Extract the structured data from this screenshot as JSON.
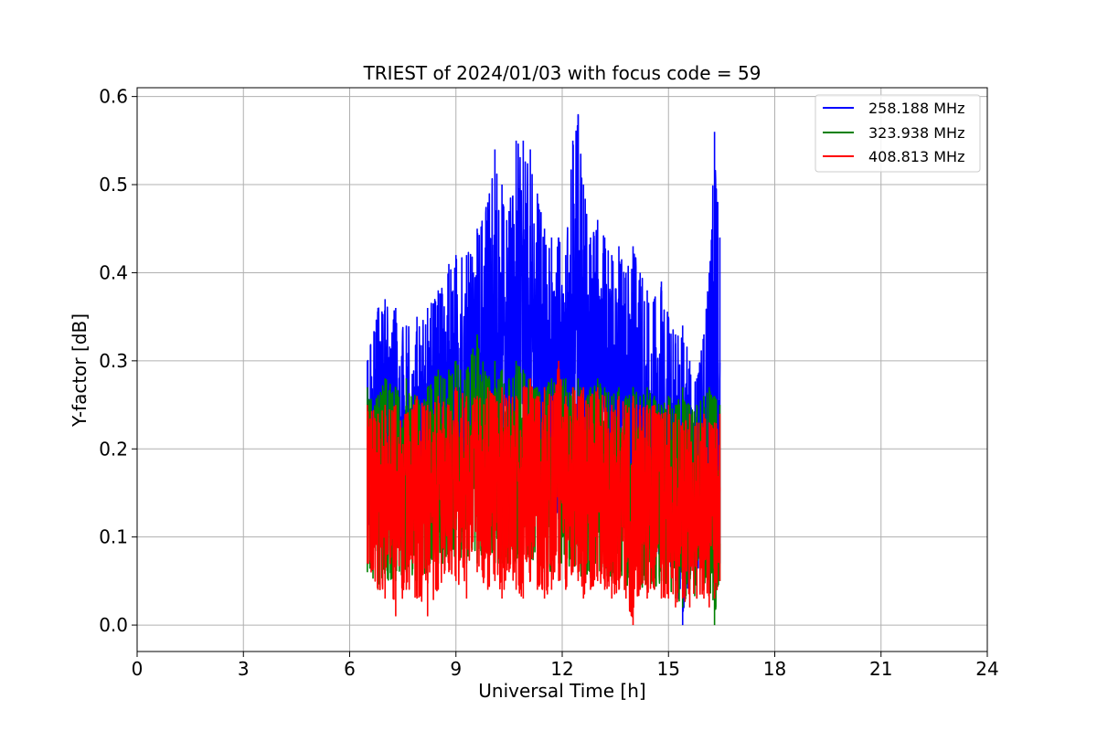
{
  "chart_data": {
    "type": "line",
    "title": "TRIEST of 2024/01/03 with focus code = 59",
    "xlabel": "Universal Time [h]",
    "ylabel": "Y-factor [dB]",
    "xlim": [
      0,
      24
    ],
    "ylim": [
      -0.03,
      0.61
    ],
    "xticks": [
      0,
      3,
      6,
      9,
      12,
      15,
      18,
      21,
      24
    ],
    "yticks": [
      0.0,
      0.1,
      0.2,
      0.3,
      0.4,
      0.5,
      0.6
    ],
    "ytick_labels": [
      "0.0",
      "0.1",
      "0.2",
      "0.3",
      "0.4",
      "0.5",
      "0.6"
    ],
    "grid": true,
    "legend_position": "top-right",
    "series": [
      {
        "name": "258.188 MHz",
        "color": "#0000ff",
        "x": [
          6.5,
          6.8,
          7.0,
          7.3,
          7.6,
          7.9,
          8.2,
          8.5,
          8.8,
          9.0,
          9.3,
          9.6,
          9.9,
          10.1,
          10.3,
          10.5,
          10.7,
          10.9,
          11.1,
          11.3,
          11.5,
          11.7,
          11.9,
          12.1,
          12.3,
          12.45,
          12.6,
          12.8,
          13.0,
          13.2,
          13.4,
          13.6,
          13.8,
          14.0,
          14.2,
          14.4,
          14.6,
          14.8,
          15.0,
          15.2,
          15.4,
          15.6,
          15.8,
          16.0,
          16.15,
          16.3,
          16.45
        ],
        "max": [
          0.3,
          0.36,
          0.37,
          0.36,
          0.34,
          0.35,
          0.36,
          0.38,
          0.41,
          0.42,
          0.42,
          0.45,
          0.48,
          0.54,
          0.5,
          0.47,
          0.55,
          0.55,
          0.54,
          0.49,
          0.45,
          0.44,
          0.44,
          0.42,
          0.55,
          0.58,
          0.5,
          0.44,
          0.46,
          0.44,
          0.42,
          0.43,
          0.4,
          0.43,
          0.4,
          0.38,
          0.37,
          0.39,
          0.35,
          0.33,
          0.34,
          0.3,
          0.28,
          0.33,
          0.4,
          0.56,
          0.44
        ],
        "min": [
          0.1,
          0.12,
          0.13,
          0.11,
          0.12,
          0.1,
          0.12,
          0.13,
          0.12,
          0.13,
          0.14,
          0.15,
          0.16,
          0.16,
          0.15,
          0.15,
          0.16,
          0.15,
          0.14,
          0.13,
          0.13,
          0.12,
          0.12,
          0.12,
          0.13,
          0.13,
          0.12,
          0.12,
          0.11,
          0.12,
          0.11,
          0.11,
          0.1,
          0.1,
          0.09,
          0.08,
          0.07,
          0.08,
          0.07,
          0.05,
          0.0,
          0.05,
          0.06,
          0.06,
          0.06,
          0.07,
          0.07
        ]
      },
      {
        "name": "323.938 MHz",
        "color": "#008000",
        "x": [
          6.5,
          6.8,
          7.0,
          7.3,
          7.6,
          7.9,
          8.2,
          8.5,
          8.8,
          9.0,
          9.3,
          9.6,
          9.9,
          10.1,
          10.3,
          10.5,
          10.7,
          10.9,
          11.1,
          11.3,
          11.5,
          11.7,
          11.9,
          12.1,
          12.3,
          12.45,
          12.6,
          12.8,
          13.0,
          13.2,
          13.4,
          13.6,
          13.8,
          14.0,
          14.2,
          14.4,
          14.6,
          14.8,
          15.0,
          15.2,
          15.4,
          15.6,
          15.8,
          16.0,
          16.15,
          16.3,
          16.45
        ],
        "max": [
          0.27,
          0.26,
          0.28,
          0.27,
          0.28,
          0.26,
          0.27,
          0.29,
          0.29,
          0.3,
          0.29,
          0.33,
          0.28,
          0.3,
          0.29,
          0.28,
          0.3,
          0.29,
          0.28,
          0.27,
          0.27,
          0.28,
          0.28,
          0.28,
          0.27,
          0.28,
          0.26,
          0.27,
          0.28,
          0.27,
          0.26,
          0.27,
          0.26,
          0.27,
          0.26,
          0.27,
          0.26,
          0.25,
          0.26,
          0.25,
          0.27,
          0.25,
          0.25,
          0.26,
          0.27,
          0.26,
          0.25
        ],
        "min": [
          0.06,
          0.04,
          0.05,
          0.05,
          0.06,
          0.05,
          0.06,
          0.07,
          0.07,
          0.08,
          0.07,
          0.07,
          0.08,
          0.07,
          0.07,
          0.07,
          0.07,
          0.08,
          0.07,
          0.07,
          0.06,
          0.06,
          0.07,
          0.07,
          0.06,
          0.06,
          0.05,
          0.06,
          0.06,
          0.05,
          0.05,
          0.05,
          0.04,
          0.05,
          0.04,
          0.04,
          0.04,
          0.05,
          0.04,
          0.03,
          0.02,
          0.04,
          0.03,
          0.04,
          0.04,
          0.0,
          0.05
        ]
      },
      {
        "name": "408.813 MHz",
        "color": "#ff0000",
        "x": [
          6.5,
          6.8,
          7.0,
          7.3,
          7.6,
          7.9,
          8.2,
          8.5,
          8.8,
          9.0,
          9.3,
          9.6,
          9.9,
          10.1,
          10.3,
          10.5,
          10.7,
          10.9,
          11.1,
          11.3,
          11.5,
          11.7,
          11.9,
          12.1,
          12.3,
          12.45,
          12.6,
          12.8,
          13.0,
          13.2,
          13.4,
          13.6,
          13.8,
          14.0,
          14.2,
          14.4,
          14.6,
          14.8,
          15.0,
          15.2,
          15.4,
          15.6,
          15.8,
          16.0,
          16.15,
          16.3,
          16.45
        ],
        "max": [
          0.25,
          0.24,
          0.25,
          0.25,
          0.24,
          0.26,
          0.25,
          0.26,
          0.25,
          0.27,
          0.26,
          0.26,
          0.27,
          0.26,
          0.27,
          0.26,
          0.26,
          0.27,
          0.28,
          0.26,
          0.27,
          0.26,
          0.3,
          0.26,
          0.27,
          0.26,
          0.27,
          0.26,
          0.27,
          0.26,
          0.25,
          0.26,
          0.25,
          0.26,
          0.25,
          0.25,
          0.25,
          0.24,
          0.25,
          0.24,
          0.23,
          0.24,
          0.23,
          0.24,
          0.23,
          0.23,
          0.24
        ],
        "min": [
          0.07,
          0.04,
          0.03,
          0.01,
          0.04,
          0.03,
          0.01,
          0.04,
          0.06,
          0.05,
          0.03,
          0.06,
          0.04,
          0.05,
          0.03,
          0.06,
          0.04,
          0.03,
          0.05,
          0.04,
          0.03,
          0.04,
          0.05,
          0.04,
          0.06,
          0.05,
          0.03,
          0.04,
          0.05,
          0.04,
          0.03,
          0.04,
          0.03,
          0.0,
          0.04,
          0.03,
          0.04,
          0.03,
          0.03,
          0.02,
          0.03,
          0.02,
          0.03,
          0.03,
          0.02,
          0.03,
          0.05
        ]
      }
    ]
  }
}
